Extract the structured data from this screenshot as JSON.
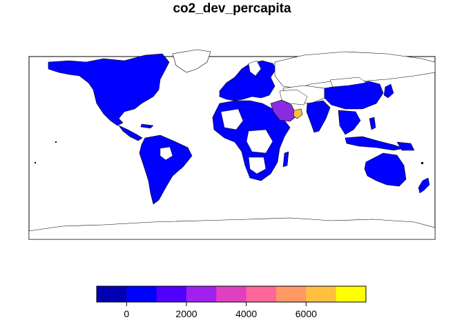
{
  "title": "co2_dev_percapita",
  "map": {
    "projection": "equirectangular (plate carree)",
    "missing_color": "#ffffff",
    "border_color": "#000000",
    "visible_colored_regions": [
      {
        "name": "North America",
        "bin": 1
      },
      {
        "name": "South America",
        "bin": 1
      },
      {
        "name": "Europe",
        "bin": 1
      },
      {
        "name": "Africa (partial)",
        "bin": 1
      },
      {
        "name": "Saudi Arabia",
        "bin": 3
      },
      {
        "name": "Oman",
        "bin": 8
      },
      {
        "name": "China",
        "bin": 1
      },
      {
        "name": "India",
        "bin": 1
      },
      {
        "name": "Southeast Asia",
        "bin": 1
      },
      {
        "name": "Australia",
        "bin": 1
      },
      {
        "name": "New Zealand",
        "bin": 1
      }
    ]
  },
  "legend": {
    "colors": [
      "#0000B2",
      "#0000FF",
      "#4F00FF",
      "#A020F0",
      "#E040C0",
      "#FF6699",
      "#FF9966",
      "#FFC040",
      "#FFFF00"
    ],
    "ticks": [
      {
        "value": 0,
        "label": "0"
      },
      {
        "value": 2000,
        "label": "2000"
      },
      {
        "value": 4000,
        "label": "4000"
      },
      {
        "value": 6000,
        "label": "6000"
      }
    ],
    "range": [
      -1000,
      8000
    ]
  }
}
